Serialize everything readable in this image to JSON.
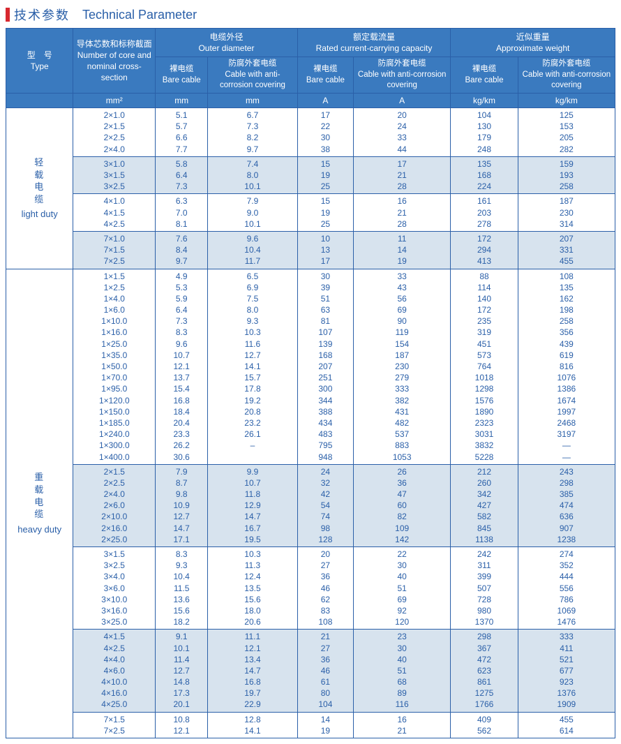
{
  "title": {
    "cn": "技术参数",
    "en": "Technical Parameter"
  },
  "headers": {
    "type_cn": "型　号",
    "type_en": "Type",
    "cross_cn": "导体芯数和标称截面",
    "cross_en": "Number of core and nominal cross-section",
    "diam_cn": "电缆外径",
    "diam_en": "Outer diameter",
    "curr_cn": "额定载流量",
    "curr_en": "Rated current-carrying capacity",
    "wt_cn": "近似重量",
    "wt_en": "Approximate weight",
    "bare_cn": "裸电缆",
    "bare_en": "Bare cable",
    "cover_cn": "防腐外套电缆",
    "cover_en": "Cable with anti-corrosion covering"
  },
  "units": {
    "cross": "mm²",
    "diam": "mm",
    "curr": "A",
    "wt": "kg/km"
  },
  "types": {
    "light": {
      "cn": [
        "轻",
        "载",
        "电",
        "缆"
      ],
      "en": "light duty"
    },
    "heavy": {
      "cn": [
        "重",
        "载",
        "电",
        "缆"
      ],
      "en": "heavy duty"
    }
  },
  "colors": {
    "border": "#2a5fa8",
    "header_bg": "#3a7abf",
    "text": "#2a5fa8",
    "shade": "#d7e3ee",
    "accent": "#d7282f"
  },
  "groups": [
    {
      "type": "light",
      "shade": false,
      "rows": [
        {
          "cs": "2×1.0",
          "d1": "5.1",
          "d2": "6.7",
          "a1": "17",
          "a2": "20",
          "w1": "104",
          "w2": "125"
        },
        {
          "cs": "2×1.5",
          "d1": "5.7",
          "d2": "7.3",
          "a1": "22",
          "a2": "24",
          "w1": "130",
          "w2": "153"
        },
        {
          "cs": "2×2.5",
          "d1": "6.6",
          "d2": "8.2",
          "a1": "30",
          "a2": "33",
          "w1": "179",
          "w2": "205"
        },
        {
          "cs": "2×4.0",
          "d1": "7.7",
          "d2": "9.7",
          "a1": "38",
          "a2": "44",
          "w1": "248",
          "w2": "282"
        }
      ]
    },
    {
      "type": "light",
      "shade": true,
      "rows": [
        {
          "cs": "3×1.0",
          "d1": "5.8",
          "d2": "7.4",
          "a1": "15",
          "a2": "17",
          "w1": "135",
          "w2": "159"
        },
        {
          "cs": "3×1.5",
          "d1": "6.4",
          "d2": "8.0",
          "a1": "19",
          "a2": "21",
          "w1": "168",
          "w2": "193"
        },
        {
          "cs": "3×2.5",
          "d1": "7.3",
          "d2": "10.1",
          "a1": "25",
          "a2": "28",
          "w1": "224",
          "w2": "258"
        }
      ]
    },
    {
      "type": "light",
      "shade": false,
      "rows": [
        {
          "cs": "4×1.0",
          "d1": "6.3",
          "d2": "7.9",
          "a1": "15",
          "a2": "16",
          "w1": "161",
          "w2": "187"
        },
        {
          "cs": "4×1.5",
          "d1": "7.0",
          "d2": "9.0",
          "a1": "19",
          "a2": "21",
          "w1": "203",
          "w2": "230"
        },
        {
          "cs": "4×2.5",
          "d1": "8.1",
          "d2": "10.1",
          "a1": "25",
          "a2": "28",
          "w1": "278",
          "w2": "314"
        }
      ]
    },
    {
      "type": "light",
      "shade": true,
      "rows": [
        {
          "cs": "7×1.0",
          "d1": "7.6",
          "d2": "9.6",
          "a1": "10",
          "a2": "11",
          "w1": "172",
          "w2": "207"
        },
        {
          "cs": "7×1.5",
          "d1": "8.4",
          "d2": "10.4",
          "a1": "13",
          "a2": "14",
          "w1": "294",
          "w2": "331"
        },
        {
          "cs": "7×2.5",
          "d1": "9.7",
          "d2": "11.7",
          "a1": "17",
          "a2": "19",
          "w1": "413",
          "w2": "455"
        }
      ]
    },
    {
      "type": "heavy",
      "shade": false,
      "rows": [
        {
          "cs": "1×1.5",
          "d1": "4.9",
          "d2": "6.5",
          "a1": "30",
          "a2": "33",
          "w1": "88",
          "w2": "108"
        },
        {
          "cs": "1×2.5",
          "d1": "5.3",
          "d2": "6.9",
          "a1": "39",
          "a2": "43",
          "w1": "114",
          "w2": "135"
        },
        {
          "cs": "1×4.0",
          "d1": "5.9",
          "d2": "7.5",
          "a1": "51",
          "a2": "56",
          "w1": "140",
          "w2": "162"
        },
        {
          "cs": "1×6.0",
          "d1": "6.4",
          "d2": "8.0",
          "a1": "63",
          "a2": "69",
          "w1": "172",
          "w2": "198"
        },
        {
          "cs": "1×10.0",
          "d1": "7.3",
          "d2": "9.3",
          "a1": "81",
          "a2": "90",
          "w1": "235",
          "w2": "258"
        },
        {
          "cs": "1×16.0",
          "d1": "8.3",
          "d2": "10.3",
          "a1": "107",
          "a2": "119",
          "w1": "319",
          "w2": "356"
        },
        {
          "cs": "1×25.0",
          "d1": "9.6",
          "d2": "11.6",
          "a1": "139",
          "a2": "154",
          "w1": "451",
          "w2": "439"
        },
        {
          "cs": "1×35.0",
          "d1": "10.7",
          "d2": "12.7",
          "a1": "168",
          "a2": "187",
          "w1": "573",
          "w2": "619"
        },
        {
          "cs": "1×50.0",
          "d1": "12.1",
          "d2": "14.1",
          "a1": "207",
          "a2": "230",
          "w1": "764",
          "w2": "816"
        },
        {
          "cs": "1×70.0",
          "d1": "13.7",
          "d2": "15.7",
          "a1": "251",
          "a2": "279",
          "w1": "1018",
          "w2": "1076"
        },
        {
          "cs": "1×95.0",
          "d1": "15.4",
          "d2": "17.8",
          "a1": "300",
          "a2": "333",
          "w1": "1298",
          "w2": "1386"
        },
        {
          "cs": "1×120.0",
          "d1": "16.8",
          "d2": "19.2",
          "a1": "344",
          "a2": "382",
          "w1": "1576",
          "w2": "1674"
        },
        {
          "cs": "1×150.0",
          "d1": "18.4",
          "d2": "20.8",
          "a1": "388",
          "a2": "431",
          "w1": "1890",
          "w2": "1997"
        },
        {
          "cs": "1×185.0",
          "d1": "20.4",
          "d2": "23.2",
          "a1": "434",
          "a2": "482",
          "w1": "2323",
          "w2": "2468"
        },
        {
          "cs": "1×240.0",
          "d1": "23.3",
          "d2": "26.1",
          "a1": "483",
          "a2": "537",
          "w1": "3031",
          "w2": "3197"
        },
        {
          "cs": "1×300.0",
          "d1": "26.2",
          "d2": "–",
          "a1": "795",
          "a2": "883",
          "w1": "3832",
          "w2": "—"
        },
        {
          "cs": "1×400.0",
          "d1": "30.6",
          "d2": "",
          "a1": "948",
          "a2": "1053",
          "w1": "5228",
          "w2": "—"
        }
      ]
    },
    {
      "type": "heavy",
      "shade": true,
      "rows": [
        {
          "cs": "2×1.5",
          "d1": "7.9",
          "d2": "9.9",
          "a1": "24",
          "a2": "26",
          "w1": "212",
          "w2": "243"
        },
        {
          "cs": "2×2.5",
          "d1": "8.7",
          "d2": "10.7",
          "a1": "32",
          "a2": "36",
          "w1": "260",
          "w2": "298"
        },
        {
          "cs": "2×4.0",
          "d1": "9.8",
          "d2": "11.8",
          "a1": "42",
          "a2": "47",
          "w1": "342",
          "w2": "385"
        },
        {
          "cs": "2×6.0",
          "d1": "10.9",
          "d2": "12.9",
          "a1": "54",
          "a2": "60",
          "w1": "427",
          "w2": "474"
        },
        {
          "cs": "2×10.0",
          "d1": "12.7",
          "d2": "14.7",
          "a1": "74",
          "a2": "82",
          "w1": "582",
          "w2": "636"
        },
        {
          "cs": "2×16.0",
          "d1": "14.7",
          "d2": "16.7",
          "a1": "98",
          "a2": "109",
          "w1": "845",
          "w2": "907"
        },
        {
          "cs": "2×25.0",
          "d1": "17.1",
          "d2": "19.5",
          "a1": "128",
          "a2": "142",
          "w1": "1138",
          "w2": "1238"
        }
      ]
    },
    {
      "type": "heavy",
      "shade": false,
      "rows": [
        {
          "cs": "3×1.5",
          "d1": "8.3",
          "d2": "10.3",
          "a1": "20",
          "a2": "22",
          "w1": "242",
          "w2": "274"
        },
        {
          "cs": "3×2.5",
          "d1": "9.3",
          "d2": "11.3",
          "a1": "27",
          "a2": "30",
          "w1": "311",
          "w2": "352"
        },
        {
          "cs": "3×4.0",
          "d1": "10.4",
          "d2": "12.4",
          "a1": "36",
          "a2": "40",
          "w1": "399",
          "w2": "444"
        },
        {
          "cs": "3×6.0",
          "d1": "11.5",
          "d2": "13.5",
          "a1": "46",
          "a2": "51",
          "w1": "507",
          "w2": "556"
        },
        {
          "cs": "3×10.0",
          "d1": "13.6",
          "d2": "15.6",
          "a1": "62",
          "a2": "69",
          "w1": "728",
          "w2": "786"
        },
        {
          "cs": "3×16.0",
          "d1": "15.6",
          "d2": "18.0",
          "a1": "83",
          "a2": "92",
          "w1": "980",
          "w2": "1069"
        },
        {
          "cs": "3×25.0",
          "d1": "18.2",
          "d2": "20.6",
          "a1": "108",
          "a2": "120",
          "w1": "1370",
          "w2": "1476"
        }
      ]
    },
    {
      "type": "heavy",
      "shade": true,
      "rows": [
        {
          "cs": "4×1.5",
          "d1": "9.1",
          "d2": "11.1",
          "a1": "21",
          "a2": "23",
          "w1": "298",
          "w2": "333"
        },
        {
          "cs": "4×2.5",
          "d1": "10.1",
          "d2": "12.1",
          "a1": "27",
          "a2": "30",
          "w1": "367",
          "w2": "411"
        },
        {
          "cs": "4×4.0",
          "d1": "11.4",
          "d2": "13.4",
          "a1": "36",
          "a2": "40",
          "w1": "472",
          "w2": "521"
        },
        {
          "cs": "4×6.0",
          "d1": "12.7",
          "d2": "14.7",
          "a1": "46",
          "a2": "51",
          "w1": "623",
          "w2": "677"
        },
        {
          "cs": "4×10.0",
          "d1": "14.8",
          "d2": "16.8",
          "a1": "61",
          "a2": "68",
          "w1": "861",
          "w2": "923"
        },
        {
          "cs": "4×16.0",
          "d1": "17.3",
          "d2": "19.7",
          "a1": "80",
          "a2": "89",
          "w1": "1275",
          "w2": "1376"
        },
        {
          "cs": "4×25.0",
          "d1": "20.1",
          "d2": "22.9",
          "a1": "104",
          "a2": "116",
          "w1": "1766",
          "w2": "1909"
        }
      ]
    },
    {
      "type": "heavy",
      "shade": false,
      "rows": [
        {
          "cs": "7×1.5",
          "d1": "10.8",
          "d2": "12.8",
          "a1": "14",
          "a2": "16",
          "w1": "409",
          "w2": "455"
        },
        {
          "cs": "7×2.5",
          "d1": "12.1",
          "d2": "14.1",
          "a1": "19",
          "a2": "21",
          "w1": "562",
          "w2": "614"
        }
      ]
    }
  ]
}
